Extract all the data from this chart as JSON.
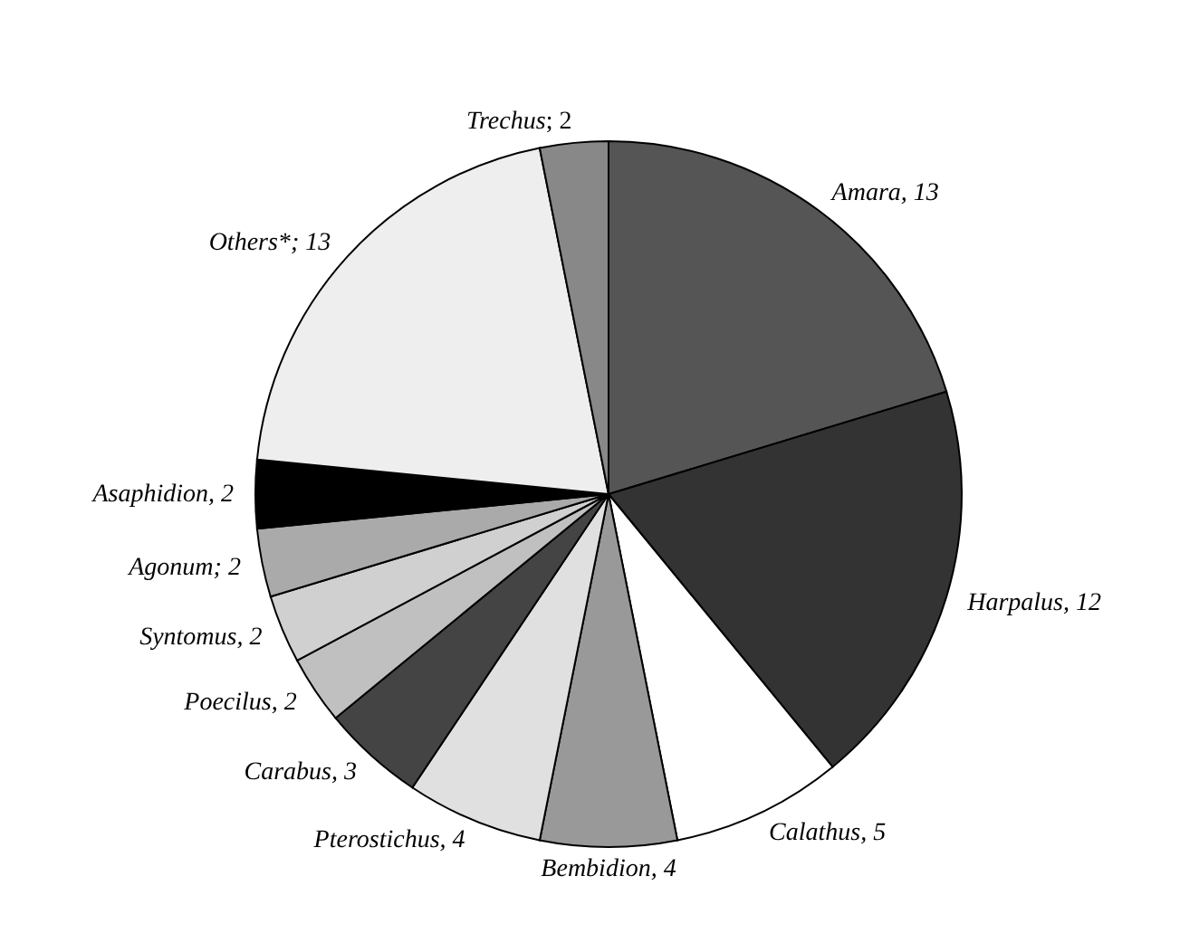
{
  "chart_data": {
    "type": "pie",
    "categories": [
      "Amara",
      "Harpalus",
      "Calathus",
      "Bembidion",
      "Pterostichus",
      "Carabus",
      "Poecilus",
      "Syntomus",
      "Agonum",
      "Asaphidion",
      "Others*",
      "Trechus"
    ],
    "values": [
      13,
      12,
      5,
      4,
      4,
      3,
      2,
      2,
      2,
      2,
      13,
      2
    ],
    "value_labels": [
      ", 13",
      ", 12",
      ", 5",
      ", 4",
      ", 4",
      ", 3",
      ", 2",
      ", 2",
      "; 2",
      ", 2",
      "; 13",
      "; 2"
    ],
    "colors": [
      "#555555",
      "#333333",
      "#ffffff",
      "#999999",
      "#e0e0e0",
      "#444444",
      "#c0c0c0",
      "#d0d0d0",
      "#aaaaaa",
      "#000000",
      "#eeeeee",
      "#888888"
    ]
  }
}
